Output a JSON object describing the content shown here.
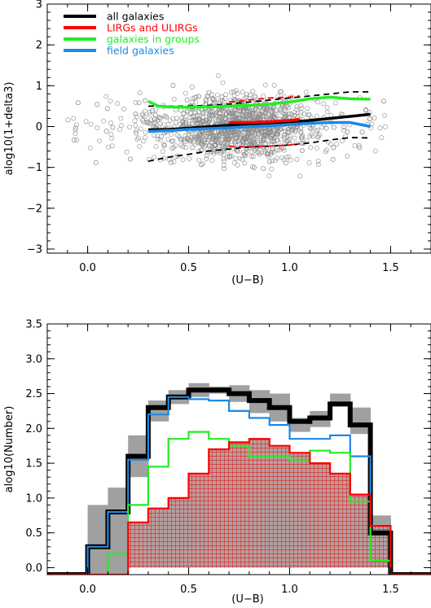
{
  "chart_data": [
    {
      "type": "scatter",
      "xlabel": "(U−B)",
      "ylabel": "alog10(1+delta3)",
      "xlim": [
        -0.2,
        1.7
      ],
      "ylim": [
        -3.1,
        3.0
      ],
      "xticks": [
        "0.0",
        "0.5",
        "1.0",
        "1.5"
      ],
      "xtick_values": [
        0.0,
        0.5,
        1.0,
        1.5
      ],
      "yticks": [
        "−3",
        "−2",
        "−1",
        "0",
        "1",
        "2",
        "3"
      ],
      "ytick_values": [
        -3,
        -2,
        -1,
        0,
        1,
        2,
        3
      ],
      "grid": false,
      "legend_position": "top-left",
      "legend": [
        {
          "label": "all galaxies",
          "color": "#000000"
        },
        {
          "label": "LIRGs and ULIRGs",
          "color": "#ff0000"
        },
        {
          "label": "galaxies in groups",
          "color": "#22ee22"
        },
        {
          "label": "field galaxies",
          "color": "#1e88e5"
        }
      ],
      "scatter_color": "#8c8c8c",
      "series": [
        {
          "name": "all galaxies",
          "style": "solid",
          "color": "#000000",
          "x": [
            0.3,
            0.4,
            0.5,
            0.6,
            0.7,
            0.8,
            0.9,
            1.0,
            1.1,
            1.2,
            1.3,
            1.4
          ],
          "y": [
            -0.08,
            -0.07,
            -0.04,
            0.0,
            0.03,
            0.06,
            0.08,
            0.11,
            0.15,
            0.2,
            0.25,
            0.3
          ]
        },
        {
          "name": "all galaxies 16th percentile",
          "style": "dashed",
          "color": "#000000",
          "x": [
            0.3,
            0.4,
            0.5,
            0.6,
            0.7,
            0.8,
            0.9,
            1.0,
            1.1,
            1.2,
            1.3,
            1.4
          ],
          "y": [
            -0.85,
            -0.75,
            -0.68,
            -0.6,
            -0.55,
            -0.5,
            -0.48,
            -0.45,
            -0.4,
            -0.33,
            -0.27,
            -0.28
          ]
        },
        {
          "name": "all galaxies 84th percentile",
          "style": "dashed",
          "color": "#000000",
          "x": [
            0.3,
            0.4,
            0.5,
            0.6,
            0.7,
            0.8,
            0.9,
            1.0,
            1.1,
            1.2,
            1.3,
            1.4
          ],
          "y": [
            0.5,
            0.5,
            0.5,
            0.52,
            0.55,
            0.6,
            0.65,
            0.7,
            0.75,
            0.8,
            0.85,
            0.85
          ]
        },
        {
          "name": "LIRGs and ULIRGs",
          "style": "solid",
          "color": "#ff0000",
          "x": [
            0.7,
            0.8,
            0.9,
            1.0,
            1.05
          ],
          "y": [
            0.1,
            0.1,
            0.12,
            0.15,
            0.18
          ]
        },
        {
          "name": "LIRGs 16th percentile",
          "style": "dashed",
          "color": "#ff0000",
          "x": [
            0.7,
            0.8,
            0.9,
            1.0,
            1.05
          ],
          "y": [
            -0.48,
            -0.5,
            -0.48,
            -0.45,
            -0.42
          ]
        },
        {
          "name": "LIRGs 84th percentile",
          "style": "dashed",
          "color": "#ff0000",
          "x": [
            0.7,
            0.8,
            0.9,
            1.0,
            1.05
          ],
          "y": [
            0.6,
            0.65,
            0.7,
            0.72,
            0.75
          ]
        },
        {
          "name": "galaxies in groups",
          "style": "solid",
          "color": "#22ee22",
          "x": [
            0.3,
            0.35,
            0.4,
            0.5,
            0.6,
            0.7,
            0.8,
            0.9,
            1.0,
            1.1,
            1.2,
            1.3,
            1.4
          ],
          "y": [
            0.62,
            0.5,
            0.48,
            0.47,
            0.48,
            0.5,
            0.52,
            0.55,
            0.6,
            0.68,
            0.72,
            0.68,
            0.67
          ]
        },
        {
          "name": "field galaxies",
          "style": "solid",
          "color": "#1e88e5",
          "x": [
            0.3,
            0.4,
            0.5,
            0.6,
            0.7,
            0.8,
            0.9,
            1.0,
            1.1,
            1.2,
            1.3,
            1.35,
            1.4
          ],
          "y": [
            -0.12,
            -0.1,
            -0.07,
            -0.05,
            -0.03,
            0.0,
            0.02,
            0.05,
            0.08,
            0.1,
            0.1,
            0.05,
            0.0
          ]
        }
      ]
    },
    {
      "type": "bar",
      "xlabel": "(U−B)",
      "ylabel": "alog10(Number)",
      "xlim": [
        -0.2,
        1.7
      ],
      "ylim": [
        -0.1,
        3.5
      ],
      "xticks": [
        "0.0",
        "0.5",
        "1.0",
        "1.5"
      ],
      "xtick_values": [
        0.0,
        0.5,
        1.0,
        1.5
      ],
      "yticks": [
        "0.0",
        "0.5",
        "1.0",
        "1.5",
        "2.0",
        "2.5",
        "3.0",
        "3.5"
      ],
      "ytick_values": [
        0.0,
        0.5,
        1.0,
        1.5,
        2.0,
        2.5,
        3.0,
        3.5
      ],
      "grid": false,
      "bin_edges": [
        -0.2,
        -0.1,
        0.0,
        0.1,
        0.2,
        0.3,
        0.4,
        0.5,
        0.6,
        0.7,
        0.8,
        0.9,
        1.0,
        1.1,
        1.2,
        1.3,
        1.4,
        1.5,
        1.6,
        1.7
      ],
      "series": [
        {
          "name": "all galaxies error upper",
          "color": "#a0a0a0",
          "style": "band-top",
          "values": [
            0.0,
            0.0,
            0.9,
            1.15,
            1.9,
            2.4,
            2.55,
            2.65,
            2.6,
            2.62,
            2.55,
            2.5,
            2.15,
            2.25,
            2.5,
            2.3,
            0.75,
            0.0,
            0.0
          ]
        },
        {
          "name": "all galaxies error lower",
          "color": "#a0a0a0",
          "style": "band-bottom",
          "values": [
            0.0,
            0.0,
            -0.1,
            -0.1,
            1.3,
            2.1,
            2.35,
            2.45,
            2.5,
            2.38,
            2.22,
            2.1,
            1.95,
            2.02,
            2.35,
            1.92,
            0.15,
            0.0,
            0.0
          ]
        },
        {
          "name": "all galaxies",
          "color": "#000000",
          "style": "step-thick",
          "values": [
            -0.1,
            -0.1,
            0.3,
            0.8,
            1.6,
            2.3,
            2.45,
            2.55,
            2.55,
            2.5,
            2.4,
            2.3,
            2.1,
            2.15,
            2.35,
            2.05,
            0.5,
            -0.1,
            -0.1
          ]
        },
        {
          "name": "field galaxies",
          "color": "#1e88e5",
          "style": "step",
          "values": [
            -0.1,
            -0.1,
            0.3,
            0.8,
            1.55,
            2.2,
            2.45,
            2.42,
            2.4,
            2.25,
            2.15,
            2.05,
            1.85,
            1.85,
            1.9,
            1.6,
            0.1,
            -0.1,
            -0.1
          ]
        },
        {
          "name": "galaxies in groups",
          "color": "#22ee22",
          "style": "step",
          "values": [
            -0.1,
            -0.1,
            -0.1,
            0.2,
            0.9,
            1.45,
            1.85,
            1.95,
            1.85,
            1.75,
            1.6,
            1.6,
            1.55,
            1.68,
            1.65,
            0.95,
            0.1,
            -0.1,
            -0.1
          ]
        },
        {
          "name": "LIRGs and ULIRGs",
          "color": "#ff0000",
          "style": "step-hatched",
          "values": [
            -0.1,
            -0.1,
            -0.1,
            -0.1,
            0.65,
            0.85,
            1.0,
            1.35,
            1.7,
            1.8,
            1.85,
            1.75,
            1.65,
            1.5,
            1.35,
            1.05,
            0.6,
            -0.1,
            -0.1
          ]
        }
      ]
    }
  ]
}
